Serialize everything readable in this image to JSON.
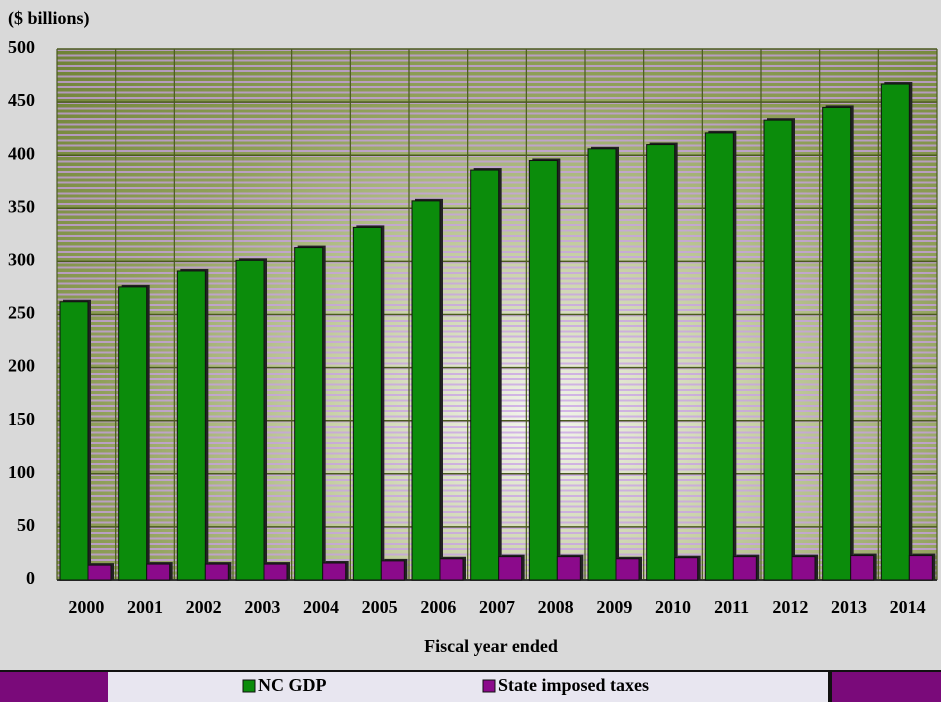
{
  "chart_data": {
    "type": "bar",
    "y_unit_label": "($ billions)",
    "x_label": "Fiscal year ended",
    "categories": [
      "2000",
      "2001",
      "2002",
      "2003",
      "2004",
      "2005",
      "2006",
      "2007",
      "2008",
      "2009",
      "2010",
      "2011",
      "2012",
      "2013",
      "2014"
    ],
    "series": [
      {
        "name": "NC GDP",
        "color": "#0b8c0b",
        "values": [
          262,
          276,
          291,
          301,
          313,
          332,
          357,
          386,
          395,
          406,
          410,
          421,
          433,
          445,
          467
        ]
      },
      {
        "name": "State imposed taxes",
        "color": "#8b0a8b",
        "values": [
          14,
          15,
          15,
          15,
          16,
          18,
          20,
          22,
          22,
          20,
          21,
          22,
          22,
          23,
          23
        ]
      }
    ],
    "ylim": [
      0,
      500
    ],
    "yticks": [
      0,
      50,
      100,
      150,
      200,
      250,
      300,
      350,
      400,
      450,
      500
    ],
    "grid": true,
    "legend": "bottom"
  }
}
